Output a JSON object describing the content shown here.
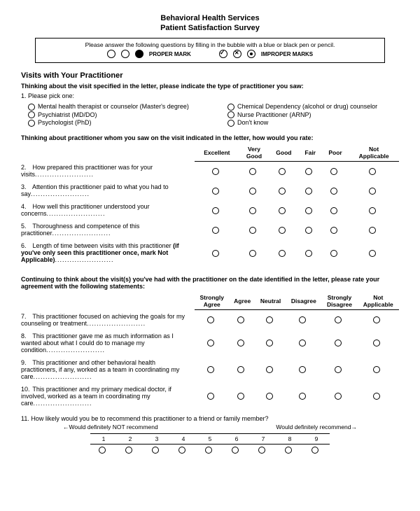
{
  "header": {
    "line1": "Behavioral Health Services",
    "line2": "Patient Satisfaction Survey"
  },
  "instructions": {
    "text": "Please answer the following questions by filling in the bubble with a blue or black pen or pencil.",
    "proper_label": "PROPER MARK",
    "improper_label": "IMPROPER MARKS"
  },
  "section1": {
    "title": "Visits with Your Practitioner",
    "lead": "Thinking about the visit specified in the letter, please indicate the type of practitioner you saw:",
    "q1_label": "1.   Please pick one:",
    "options_left": [
      "Mental health therapist or counselor (Master's degree)",
      "Psychiatrist (MD/DO)",
      "Psychologist (PhD)"
    ],
    "options_right": [
      "Chemical Dependency (alcohol or drug) counselor",
      "Nurse Practitioner (ARNP)",
      "Don't know"
    ]
  },
  "rating1": {
    "lead": "Thinking about practitioner whom you saw on the visit indicated in the letter, how would you rate:",
    "headers": [
      "Excellent",
      "Very Good",
      "Good",
      "Fair",
      "Poor",
      "Not Applicable"
    ],
    "rows": [
      {
        "n": "2.",
        "text": "How prepared this practitioner was for your visits",
        "dots": true
      },
      {
        "n": "3.",
        "text": "Attention this practitioner paid to what you had to say",
        "dots": true
      },
      {
        "n": "4.",
        "text": "How well this practitioner understood your concerns",
        "dots": true
      },
      {
        "n": "5.",
        "text": "Thoroughness and competence of this practitioner",
        "dots": true
      },
      {
        "n": "6.",
        "text": "Length of time between visits with this practitioner",
        "bold_suffix": " (if you've only seen this practitioner once, mark Not Applicable)",
        "dots": true
      }
    ]
  },
  "rating2": {
    "lead": "Continuing to think about the visit(s) you've had with the practitioner on the date identified in the letter, please rate your agreement with the following statements:",
    "headers": [
      "Strongly Agree",
      "Agree",
      "Neutral",
      "Disagree",
      "Strongly Disagree",
      "Not Applicable"
    ],
    "rows": [
      {
        "n": "7.",
        "text": "This practitioner focused on achieving the goals for my counseling or treatment",
        "dots": true
      },
      {
        "n": "8.",
        "text": "This practitioner gave me as much information as I wanted about what I could do to manage my condition",
        "dots": true
      },
      {
        "n": "9.",
        "text": "This practitioner and other behavioral health practitioners, if any, worked as a team in coordinating my care",
        "dots": true
      },
      {
        "n": "10.",
        "text": "This practitioner and my primary medical doctor, if involved, worked as a team in coordinating my care",
        "dots": true
      }
    ]
  },
  "q11": {
    "text": "11. How likely would you be to recommend this practitioner to a friend or family member?",
    "left_label": "←Would definitely NOT recommend",
    "right_label": "Would definitely recommend→",
    "scale": [
      "1",
      "2",
      "3",
      "4",
      "5",
      "6",
      "7",
      "8",
      "9"
    ]
  }
}
